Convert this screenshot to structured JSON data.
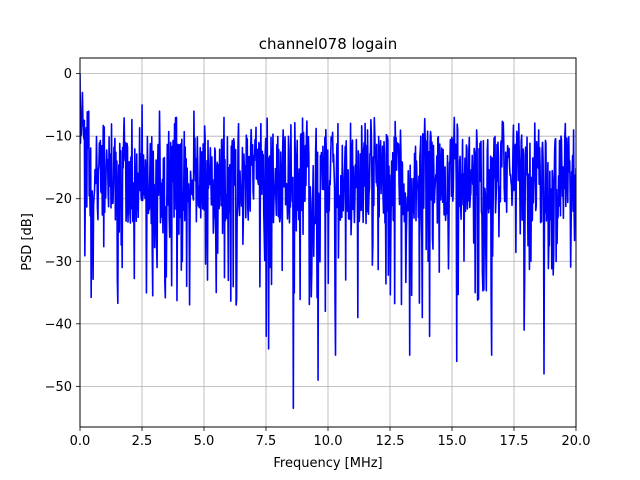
{
  "chart_data": {
    "type": "line",
    "title": "channel078 logain",
    "xlabel": "Frequency [MHz]",
    "ylabel": "PSD [dB]",
    "xlim": [
      0,
      20
    ],
    "ylim": [
      -56.5,
      2.5
    ],
    "grid": true,
    "line_color": "#0000ff",
    "x_ticks": [
      {
        "value": 0,
        "label": "0.0"
      },
      {
        "value": 2.5,
        "label": "2.5"
      },
      {
        "value": 5,
        "label": "5.0"
      },
      {
        "value": 7.5,
        "label": "7.5"
      },
      {
        "value": 10,
        "label": "10.0"
      },
      {
        "value": 12.5,
        "label": "12.5"
      },
      {
        "value": 15,
        "label": "15.0"
      },
      {
        "value": 17.5,
        "label": "17.5"
      },
      {
        "value": 20,
        "label": "20.0"
      }
    ],
    "y_ticks": [
      {
        "value": 0,
        "label": "0"
      },
      {
        "value": -10,
        "label": "−10"
      },
      {
        "value": -20,
        "label": "−20"
      },
      {
        "value": -30,
        "label": "−30"
      },
      {
        "value": -40,
        "label": "−40"
      },
      {
        "value": -50,
        "label": "−50"
      }
    ],
    "series": [
      {
        "values_note_free": true,
        "x_start": 0,
        "x_end": 20,
        "n_points": 1024,
        "mean_level": -17,
        "peaks": [
          {
            "x": 0.0,
            "y": 0
          },
          {
            "x": 0.1,
            "y": -3
          },
          {
            "x": 0.35,
            "y": -6
          },
          {
            "x": 1.7,
            "y": -5
          },
          {
            "x": 2.5,
            "y": -5
          },
          {
            "x": 3.2,
            "y": -6
          },
          {
            "x": 3.9,
            "y": -7
          },
          {
            "x": 4.6,
            "y": -6
          },
          {
            "x": 5.8,
            "y": -7
          },
          {
            "x": 6.4,
            "y": -8
          },
          {
            "x": 7.3,
            "y": -8
          },
          {
            "x": 8.2,
            "y": -9
          },
          {
            "x": 8.9,
            "y": -10
          },
          {
            "x": 10.4,
            "y": -8
          },
          {
            "x": 11.6,
            "y": -9
          },
          {
            "x": 12.4,
            "y": -10
          },
          {
            "x": 13.3,
            "y": -9
          },
          {
            "x": 15.1,
            "y": -7
          },
          {
            "x": 16.0,
            "y": -9
          },
          {
            "x": 17.7,
            "y": -8
          },
          {
            "x": 18.5,
            "y": -9
          },
          {
            "x": 19.4,
            "y": -10
          },
          {
            "x": 19.9,
            "y": -9
          }
        ],
        "dips": [
          {
            "x": 7.5,
            "y": -42
          },
          {
            "x": 7.6,
            "y": -44
          },
          {
            "x": 8.6,
            "y": -53.5
          },
          {
            "x": 9.6,
            "y": -49
          },
          {
            "x": 10.3,
            "y": -45
          },
          {
            "x": 13.3,
            "y": -45
          },
          {
            "x": 14.1,
            "y": -42
          },
          {
            "x": 15.2,
            "y": -46
          },
          {
            "x": 16.6,
            "y": -45
          },
          {
            "x": 18.7,
            "y": -48
          },
          {
            "x": 17.9,
            "y": -41
          },
          {
            "x": 13.8,
            "y": -39
          },
          {
            "x": 11.2,
            "y": -39
          },
          {
            "x": 9.9,
            "y": -38
          },
          {
            "x": 6.3,
            "y": -37
          },
          {
            "x": 4.3,
            "y": -34
          },
          {
            "x": 5.5,
            "y": -35
          },
          {
            "x": 3.1,
            "y": -31
          },
          {
            "x": 1.7,
            "y": -31
          }
        ]
      }
    ]
  }
}
